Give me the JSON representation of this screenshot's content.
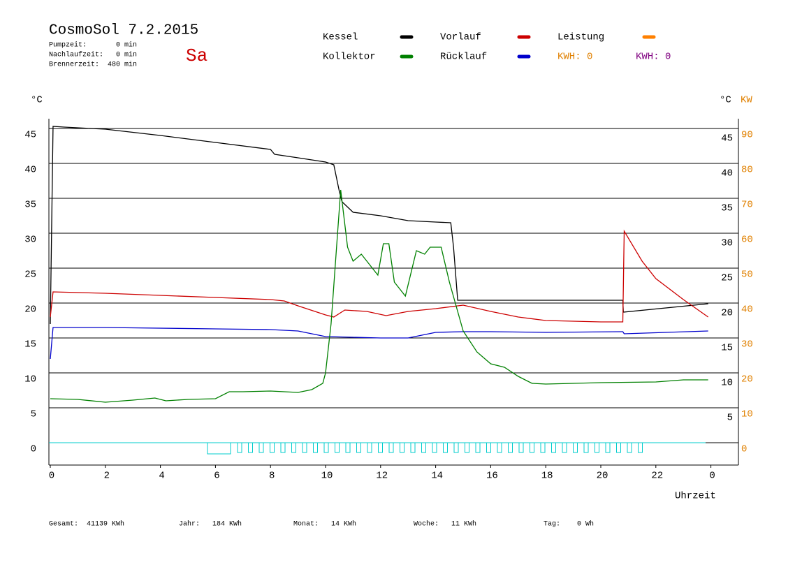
{
  "chart_data": {
    "type": "line",
    "title": "CosmoSol 7.2.2015",
    "day": "Sa",
    "info": [
      "Pumpzeit:       0 min",
      "Nachlaufzeit:   0 min",
      "Brennerzeit:  480 min"
    ],
    "y_unit": "°C",
    "y2_unit_c": "°C",
    "y2_unit": "KW",
    "xlabel": "Uhrzeit",
    "xlim": [
      0,
      25
    ],
    "xticks": [
      0,
      2,
      4,
      6,
      8,
      10,
      12,
      14,
      16,
      18,
      20,
      22,
      {
        "value": 24,
        "label": "0"
      }
    ],
    "ylim": [
      -3.2,
      46.4
    ],
    "yticks": [
      0,
      5,
      10,
      15,
      20,
      25,
      30,
      35,
      40,
      45
    ],
    "right_yticks": [
      5,
      10,
      15,
      20,
      25,
      30,
      35,
      40,
      45
    ],
    "y2lim": [
      -6.4,
      92.8
    ],
    "y2ticks": [
      0,
      10,
      20,
      30,
      40,
      50,
      60,
      70,
      80,
      90
    ],
    "grid": true,
    "series": [
      {
        "name": "Kessel",
        "color": "#000000",
        "x": [
          0,
          0.1,
          0.5,
          2,
          4,
          6,
          8,
          8.15,
          9,
          10,
          10.3,
          10.5,
          10.6,
          11,
          12,
          13,
          14,
          14.55,
          14.65,
          14.8,
          20.8,
          20.82,
          23.9
        ],
        "values": [
          17,
          45.3,
          45.2,
          44.9,
          44.0,
          43.0,
          42.0,
          41.3,
          40.8,
          40.2,
          39.8,
          36,
          34.5,
          33,
          32.5,
          31.8,
          31.6,
          31.5,
          28,
          20.4,
          20.4,
          18.7,
          19.9
        ]
      },
      {
        "name": "Vorlauf",
        "color": "#cc0000",
        "x": [
          0,
          0.1,
          2,
          4,
          6,
          8,
          8.5,
          9,
          10,
          10.3,
          10.7,
          11.5,
          12.2,
          13,
          14,
          15,
          16,
          17,
          18,
          20,
          20.8,
          20.85,
          21.5,
          22,
          23,
          23.9
        ],
        "values": [
          18,
          21.6,
          21.4,
          21.1,
          20.8,
          20.5,
          20.3,
          19.6,
          18.3,
          18.0,
          19.0,
          18.8,
          18.2,
          18.8,
          19.2,
          19.7,
          18.8,
          18.0,
          17.5,
          17.3,
          17.3,
          30.3,
          26,
          23.5,
          20.5,
          18.0
        ]
      },
      {
        "name": "Rücklauf",
        "color": "#0000cc",
        "x": [
          0,
          0.1,
          2,
          6,
          8,
          9,
          10,
          11,
          12,
          13,
          14,
          15,
          16,
          18,
          20.8,
          20.85,
          23.9
        ],
        "values": [
          12,
          16.5,
          16.5,
          16.3,
          16.2,
          16.0,
          15.2,
          15.1,
          15.0,
          15.0,
          15.8,
          15.9,
          15.9,
          15.8,
          15.9,
          15.6,
          16.0
        ]
      },
      {
        "name": "Kollektor",
        "color": "#008000",
        "x": [
          0,
          1,
          2,
          3,
          3.8,
          4.2,
          5,
          6,
          6.5,
          7,
          8,
          9,
          9.5,
          9.9,
          10,
          10.2,
          10.4,
          10.55,
          10.8,
          11,
          11.3,
          11.6,
          11.9,
          12.1,
          12.3,
          12.5,
          12.9,
          13.3,
          13.6,
          13.8,
          14.2,
          14.5,
          15,
          15.5,
          16,
          16.5,
          17,
          17.5,
          18,
          20,
          22,
          23,
          23.9
        ],
        "values": [
          6.3,
          6.2,
          5.8,
          6.1,
          6.4,
          6.0,
          6.2,
          6.3,
          7.3,
          7.3,
          7.4,
          7.2,
          7.6,
          8.5,
          10,
          17,
          28,
          36.2,
          28,
          26.0,
          27.0,
          25.5,
          24.0,
          28.5,
          28.5,
          23,
          21.0,
          27.5,
          27.0,
          28,
          28,
          23,
          16,
          13,
          11.3,
          10.8,
          9.5,
          8.5,
          8.4,
          8.6,
          8.7,
          9.0,
          9.0
        ]
      }
    ],
    "legend_extra": {
      "name": "Leistung",
      "color": "#ff8000"
    },
    "kwh": [
      {
        "label": "KWH: 0",
        "color": "#e08000"
      },
      {
        "label": "KWH: 0",
        "color": "#800080"
      }
    ],
    "footer": [
      "Gesamt:  41139 KWh",
      "Jahr:   184 KWh",
      "Monat:   14 KWh",
      "Woche:   11 KWh",
      "Tag:    0 Wh"
    ]
  }
}
